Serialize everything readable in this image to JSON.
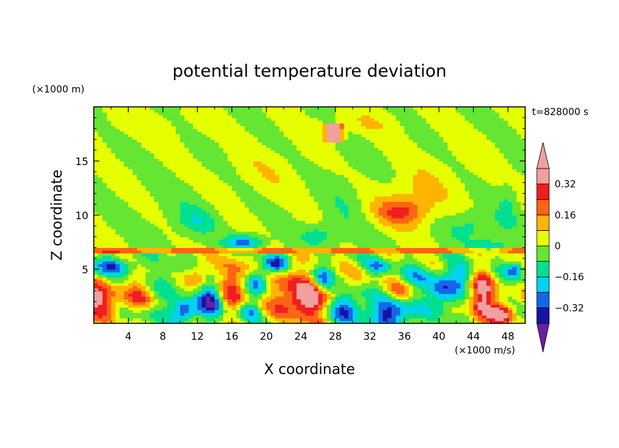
{
  "chart_data": {
    "type": "heatmap",
    "title": "potential temperature deviation",
    "xlabel": "X coordinate",
    "ylabel": "Z coordinate",
    "x_unit": "(×1000 m/s)",
    "y_unit": "(×1000 m)",
    "time_label": "t=828000 s",
    "xlim": [
      0,
      50
    ],
    "ylim": [
      0,
      20
    ],
    "x_ticks": [
      4,
      8,
      12,
      16,
      20,
      24,
      28,
      32,
      36,
      40,
      44,
      48
    ],
    "y_ticks": [
      5,
      10,
      15
    ],
    "x_tick_labels": [
      "4",
      "8",
      "12",
      "16",
      "20",
      "24",
      "28",
      "32",
      "36",
      "40",
      "44",
      "48"
    ],
    "y_tick_labels": [
      "5",
      "10",
      "15"
    ],
    "colorbar": {
      "levels": [
        -0.4,
        -0.32,
        -0.24,
        -0.16,
        -0.08,
        0,
        0.08,
        0.16,
        0.24,
        0.32,
        0.4
      ],
      "tick_values": [
        -0.32,
        -0.16,
        0,
        0.16,
        0.32
      ],
      "tick_labels": [
        "−0.32",
        "−0.16",
        "0",
        "0.16",
        "0.32"
      ],
      "colors": [
        "#6a1fa0",
        "#1414a8",
        "#1466e6",
        "#00d2f0",
        "#00e090",
        "#64e632",
        "#e6ff00",
        "#ffb400",
        "#ff6414",
        "#f01e1e",
        "#f0a0a0",
        "#f0a0a0"
      ]
    }
  }
}
